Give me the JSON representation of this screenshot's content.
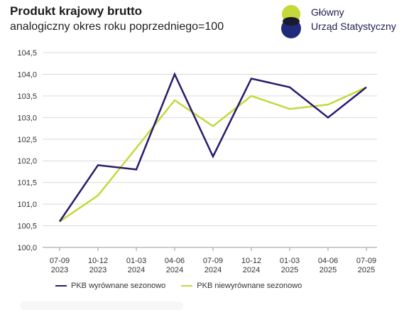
{
  "title": "Produkt krajowy brutto",
  "subtitle": "analogiczny okres roku poprzedniego=100",
  "logo": {
    "line1": "Główny",
    "line2": "Urząd Statystyczny"
  },
  "colors": {
    "series1": "#2b1a6b",
    "series2": "#c5d93a",
    "grid": "#d9d9d9",
    "logo_green": "#c5d93a",
    "logo_blue": "#1f2a7a",
    "logo_dark": "#1a1a2e"
  },
  "chart_data": {
    "type": "line",
    "categories": [
      [
        "07-09",
        "2023"
      ],
      [
        "10-12",
        "2023"
      ],
      [
        "01-03",
        "2024"
      ],
      [
        "04-06",
        "2024"
      ],
      [
        "07-09",
        "2024"
      ],
      [
        "10-12",
        "2024"
      ],
      [
        "01-03",
        "2025"
      ],
      [
        "04-06",
        "2025"
      ],
      [
        "07-09",
        "2025"
      ]
    ],
    "series": [
      {
        "name": "PKB wyrównane sezonowo",
        "color": "#2b1a6b",
        "values": [
          100.6,
          101.9,
          101.8,
          104.0,
          102.1,
          103.9,
          103.7,
          103.0,
          103.7
        ]
      },
      {
        "name": "PKB niewyrównane sezonowo",
        "color": "#c5d93a",
        "values": [
          100.6,
          101.2,
          102.3,
          103.4,
          102.8,
          103.5,
          103.2,
          103.3,
          103.7
        ]
      }
    ],
    "y_ticks": [
      "100,0",
      "100,5",
      "101,0",
      "101,5",
      "102,0",
      "102,5",
      "103,0",
      "103,5",
      "104,0",
      "104,5"
    ],
    "ylim": [
      100.0,
      104.5
    ],
    "grid": true,
    "legend_position": "bottom"
  }
}
